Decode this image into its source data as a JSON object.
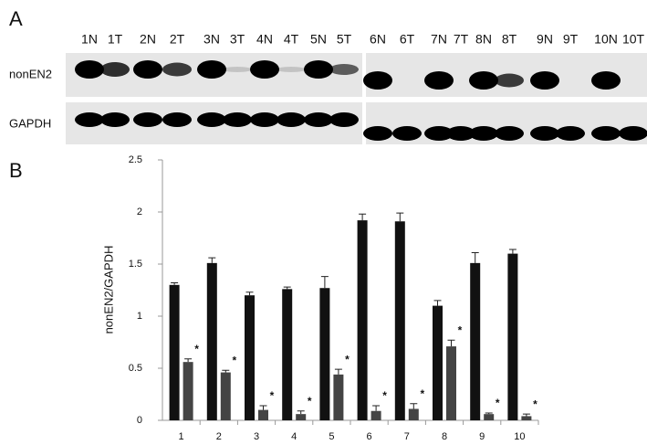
{
  "panel_a": {
    "letter": "A",
    "lanes": [
      "1N",
      "1T",
      "2N",
      "2T",
      "3N",
      "3T",
      "4N",
      "4T",
      "5N",
      "5T",
      "6N",
      "6T",
      "7N",
      "7T",
      "8N",
      "8T",
      "9N",
      "9T",
      "10N",
      "10T"
    ],
    "rows": [
      "nonEN2",
      "GAPDH"
    ]
  },
  "panel_b": {
    "letter": "B"
  },
  "chart_data": {
    "type": "bar",
    "y_label": "nonEN2/GAPDH",
    "categories": [
      "1",
      "2",
      "3",
      "4",
      "5",
      "6",
      "7",
      "8",
      "9",
      "10"
    ],
    "series": [
      {
        "color": "#111111",
        "values": [
          1.3,
          1.51,
          1.2,
          1.26,
          1.27,
          1.92,
          1.91,
          1.1,
          1.51,
          1.6
        ],
        "errors": [
          0.02,
          0.05,
          0.03,
          0.02,
          0.11,
          0.06,
          0.08,
          0.05,
          0.1,
          0.04
        ]
      },
      {
        "color": "#444444",
        "values": [
          0.56,
          0.46,
          0.1,
          0.06,
          0.44,
          0.09,
          0.11,
          0.71,
          0.06,
          0.04
        ],
        "errors": [
          0.03,
          0.02,
          0.04,
          0.03,
          0.05,
          0.05,
          0.05,
          0.06,
          0.01,
          0.02
        ],
        "significance": [
          "*",
          "*",
          "*",
          "*",
          "*",
          "*",
          "*",
          "*",
          "*",
          "*"
        ]
      }
    ],
    "ylim": [
      0,
      2.5
    ],
    "yticks": [
      0,
      0.5,
      1,
      1.5,
      2,
      2.5
    ]
  }
}
